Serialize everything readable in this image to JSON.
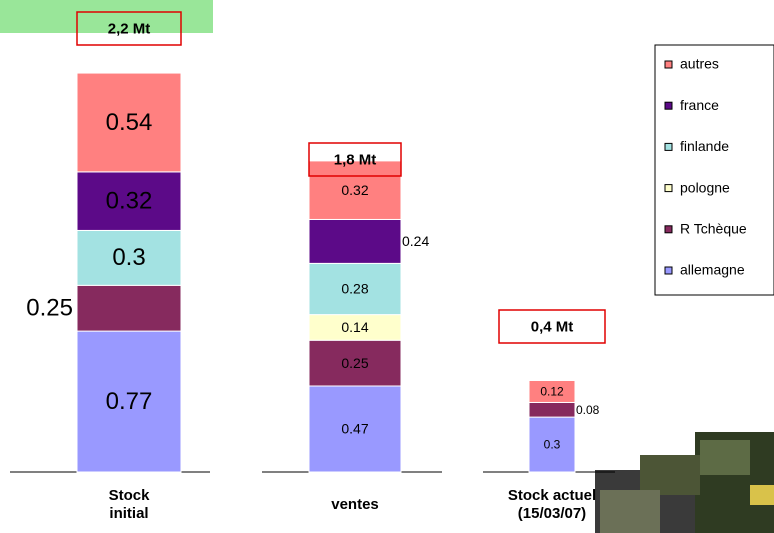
{
  "chart_data": {
    "type": "stacked-bar",
    "categories": [
      "Stock initial",
      "ventes",
      "Stock actuel (15/03/07)"
    ],
    "annotations": [
      "2,2 Mt",
      "1,8 Mt",
      "0,4 Mt"
    ],
    "series": [
      {
        "name": "allemagne",
        "color": "#9999ff",
        "values": [
          0.77,
          0.47,
          0.3
        ]
      },
      {
        "name": "R Tchèque",
        "color": "#862a5e",
        "values": [
          0.25,
          0.25,
          0.08
        ]
      },
      {
        "name": "pologne",
        "color": "#ffffcc",
        "values": [
          null,
          0.14,
          null
        ]
      },
      {
        "name": "finlande",
        "color": "#a3e2e2",
        "values": [
          0.3,
          0.28,
          null
        ]
      },
      {
        "name": "france",
        "color": "#5c0a88",
        "values": [
          0.32,
          0.24,
          null
        ]
      },
      {
        "name": "autres",
        "color": "#ff8080",
        "values": [
          0.54,
          0.32,
          0.12
        ]
      }
    ]
  }
}
